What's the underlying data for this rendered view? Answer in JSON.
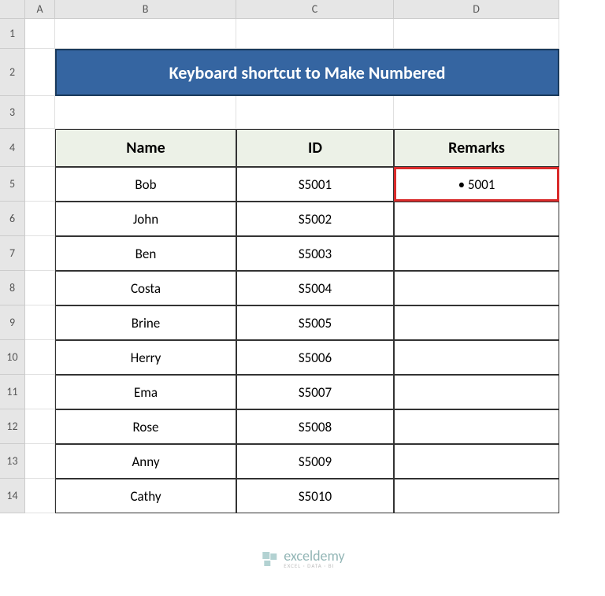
{
  "columns": {
    "labels": [
      "A",
      "B",
      "C",
      "D"
    ],
    "widths": [
      38,
      230,
      200,
      210
    ]
  },
  "rows": {
    "labels": [
      "1",
      "2",
      "3",
      "4",
      "5",
      "6",
      "7",
      "8",
      "9",
      "10",
      "11",
      "12",
      "13",
      "14"
    ],
    "heights": [
      38,
      60,
      42,
      48,
      44,
      44,
      44,
      44,
      44,
      44,
      44,
      44,
      44,
      44
    ]
  },
  "title": "Keyboard shortcut to Make Numbered",
  "table": {
    "headers": [
      "Name",
      "ID",
      "Remarks"
    ],
    "rows": [
      {
        "name": "Bob",
        "id": "S5001",
        "remarks": "• 5001"
      },
      {
        "name": "John",
        "id": "S5002",
        "remarks": ""
      },
      {
        "name": "Ben",
        "id": "S5003",
        "remarks": ""
      },
      {
        "name": "Costa",
        "id": "S5004",
        "remarks": ""
      },
      {
        "name": "Brine",
        "id": "S5005",
        "remarks": ""
      },
      {
        "name": "Herry",
        "id": "S5006",
        "remarks": ""
      },
      {
        "name": "Ema",
        "id": "S5007",
        "remarks": ""
      },
      {
        "name": "Rose",
        "id": "S5008",
        "remarks": ""
      },
      {
        "name": "Anny",
        "id": "S5009",
        "remarks": ""
      },
      {
        "name": "Cathy",
        "id": "S5010",
        "remarks": ""
      }
    ]
  },
  "highlighted": {
    "row": 5,
    "col": "D"
  },
  "colors": {
    "title_bg": "#3565a1",
    "title_text": "#ffffff",
    "header_bg": "#ecf1e7",
    "border": "#333333",
    "highlight_border": "#d92b2b",
    "grid_line": "#e0e0e0",
    "col_header_bg": "#e6e6e6"
  },
  "watermark": {
    "main": "exceldemy",
    "sub": "EXCEL · DATA · BI"
  }
}
